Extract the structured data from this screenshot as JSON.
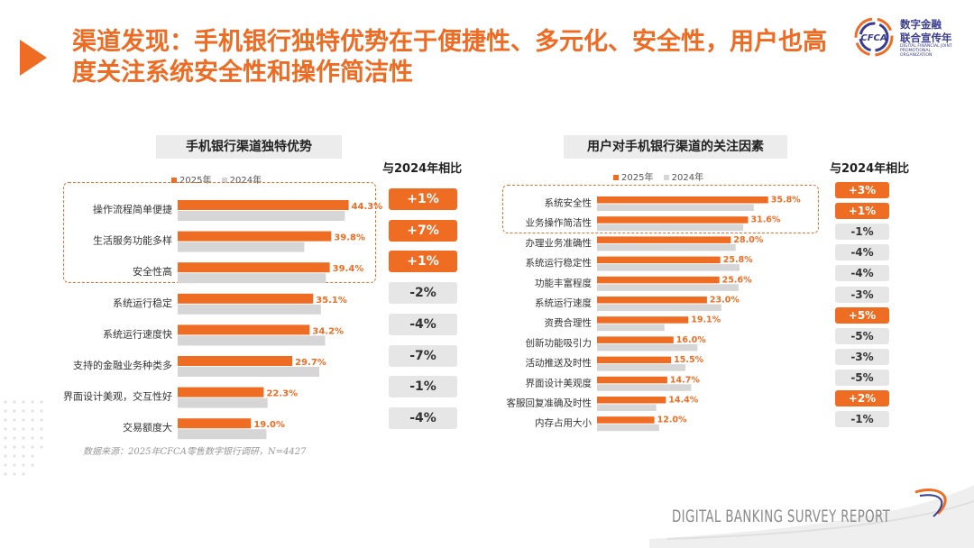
{
  "title": "渠道发现：手机银行独特优势在于便捷性、多元化、安全性，用户也高度关注系统安全性和操作简洁性",
  "logo": {
    "name_line1": "数字金融",
    "name_line2": "联合宣传年",
    "name_en": "DIGITAL FINANCIAL JOINT PROMOTIONAL ORGANIZATION",
    "mark": "CFCA"
  },
  "colors": {
    "series2025": "#ef6c23",
    "series2024": "#d6d6d6",
    "accent": "#ee6b23"
  },
  "compare_label": "与2024年相比",
  "chart_data": [
    {
      "type": "bar",
      "title": "手机银行渠道独特优势",
      "categories": [
        "操作流程简单便捷",
        "生活服务功能多样",
        "安全性高",
        "系统运行稳定",
        "系统运行速度快",
        "支持的金融业务种类多",
        "界面设计美观，交互性好",
        "交易额度大"
      ],
      "series": [
        {
          "name": "2025年",
          "values": [
            44.3,
            39.8,
            39.4,
            35.1,
            34.2,
            29.7,
            22.3,
            19.0
          ],
          "labels": [
            "44.3%",
            "39.8%",
            "39.4%",
            "35.1%",
            "34.2%",
            "29.7%",
            "22.3%",
            "19.0%"
          ]
        },
        {
          "name": "2024年",
          "values": [
            43.3,
            32.8,
            38.4,
            37.1,
            38.2,
            36.7,
            23.3,
            23.0
          ]
        }
      ],
      "changes": [
        "+1%",
        "+7%",
        "+1%",
        "-2%",
        "-4%",
        "-7%",
        "-1%",
        "-4%"
      ],
      "highlighted": 3
    },
    {
      "type": "bar",
      "title": "用户对手机银行渠道的关注因素",
      "categories": [
        "系统安全性",
        "业务操作简洁性",
        "办理业务准确性",
        "系统运行稳定性",
        "功能丰富程度",
        "系统运行速度",
        "资费合理性",
        "创新功能吸引力",
        "活动推送及时性",
        "界面设计美观度",
        "客服回复准确及时性",
        "内存占用大小"
      ],
      "series": [
        {
          "name": "2025年",
          "values": [
            35.8,
            31.6,
            28.0,
            25.8,
            25.6,
            23.0,
            19.1,
            16.0,
            15.5,
            14.7,
            14.4,
            12.0
          ],
          "labels": [
            "35.8%",
            "31.6%",
            "28.0%",
            "25.8%",
            "25.6%",
            "23.0%",
            "19.1%",
            "16.0%",
            "15.5%",
            "14.7%",
            "14.4%",
            "12.0%"
          ]
        },
        {
          "name": "2024年",
          "values": [
            32.8,
            30.6,
            29.0,
            29.8,
            29.6,
            26.0,
            14.1,
            21.0,
            18.5,
            19.7,
            12.4,
            13.0
          ]
        }
      ],
      "changes": [
        "+3%",
        "+1%",
        "-1%",
        "-4%",
        "-4%",
        "-3%",
        "+5%",
        "-5%",
        "-3%",
        "-5%",
        "+2%",
        "-1%"
      ],
      "highlighted": 2
    }
  ],
  "source": "数据来源：2025年CFCA零售数字银行调研，N=4427",
  "footer": "DIGITAL BANKING SURVEY REPORT"
}
